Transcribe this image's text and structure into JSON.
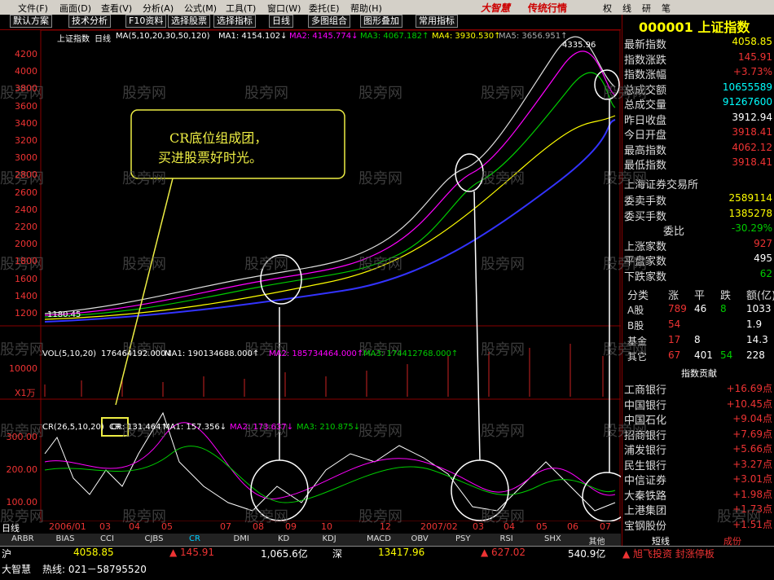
{
  "menu": {
    "logo": "大智慧",
    "logo_sub": "传统行情",
    "items": [
      "文件(F)",
      "画面(D)",
      "查看(V)",
      "分析(A)",
      "公式(M)",
      "工具(T)",
      "窗口(W)",
      "委托(E)",
      "帮助(H)"
    ],
    "tabs": [
      "权",
      "线",
      "研",
      "笔"
    ]
  },
  "toolbar": [
    "默认方案",
    "技术分析",
    "F10资料",
    "选择股票",
    "选择指标",
    "日线",
    "多图组合",
    "图形叠加",
    "常用指标"
  ],
  "watermark": "股旁网",
  "main_panel": {
    "legend": [
      "上证指数",
      "日线",
      "MA(5,10,20,30,50,120)",
      "MA1: 4154.102↓",
      "MA2: 4145.774↓",
      "MA3: 4067.182↑",
      "MA4: 3930.530↑",
      "MA5: 3656.951↑"
    ],
    "yaxis": [
      "4200",
      "4000",
      "3800",
      "3600",
      "3400",
      "3200",
      "3000",
      "2800",
      "2600",
      "2400",
      "2200",
      "2000",
      "1800",
      "1600",
      "1400",
      "1200"
    ],
    "high_label": "4335.96",
    "low_label": "1180.45",
    "callout": [
      "CR底位组成团，",
      "买进股票好时光。"
    ]
  },
  "vol_panel": {
    "legend": [
      "VOL(5,10,20)",
      "176464192.000↓",
      "MA1: 190134688.000↑",
      "MA2: 185734464.000↑",
      "MA3: 174412768.000↑"
    ],
    "yaxis": [
      "10000"
    ],
    "unit": "X1万"
  },
  "cr_panel": {
    "legend": [
      "CR(26,5,10,20)",
      "CR: 131.464↑",
      "MA1: 157.356↓",
      "MA2: 173.637↓",
      "MA3: 210.875↓"
    ],
    "yaxis": [
      "300.00",
      "200.00",
      "100.00"
    ],
    "box_label": "CR"
  },
  "date_axis": [
    "日线",
    "2006/01",
    "03",
    "04",
    "05",
    "07",
    "08",
    "09",
    "10",
    "12",
    "2007/02",
    "03",
    "04",
    "05",
    "06",
    "07"
  ],
  "indicator_tabs": [
    "ARBR",
    "BIAS",
    "CCI",
    "CJBS",
    "CR",
    "DMI",
    "KD",
    "KDJ",
    "MACD",
    "OBV",
    "PSY",
    "RSI",
    "SHX",
    "其他"
  ],
  "right_panel": {
    "title": "000001 上证指数",
    "quote": [
      [
        "最新指数",
        "4058.85"
      ],
      [
        "指数涨跌",
        "145.91"
      ],
      [
        "指数涨幅",
        "+3.73%"
      ],
      [
        "总成交额",
        "10655589"
      ],
      [
        "总成交量",
        "91267600"
      ],
      [
        "昨日收盘",
        "3912.94"
      ],
      [
        "今日开盘",
        "3918.41"
      ],
      [
        "最高指数",
        "4062.12"
      ],
      [
        "最低指数",
        "3918.41"
      ]
    ],
    "exchange": "上海证券交易所",
    "orders": [
      [
        "委卖手数",
        "2589114"
      ],
      [
        "委买手数",
        "1385278"
      ],
      [
        "委比",
        "-30.29%"
      ],
      [
        "上涨家数",
        "927"
      ],
      [
        "平盘家数",
        "495"
      ],
      [
        "下跌家数",
        "62"
      ]
    ],
    "table": {
      "header": [
        "分类",
        "涨",
        "平",
        "跌",
        "额(亿)"
      ],
      "rows": [
        [
          "A股",
          "789",
          "46",
          "8",
          "1033"
        ],
        [
          "B股",
          "54",
          null,
          null,
          "1.9"
        ],
        [
          "基金",
          "17",
          "8",
          null,
          "14.3"
        ],
        [
          "其它",
          "67",
          "401",
          "54",
          "228"
        ]
      ]
    },
    "contrib_title": "指数贡献",
    "contrib": [
      [
        "工商银行",
        "+16.69点"
      ],
      [
        "中国银行",
        "+10.45点"
      ],
      [
        "中国石化",
        "+9.04点"
      ],
      [
        "招商银行",
        "+7.69点"
      ],
      [
        "浦发银行",
        "+5.66点"
      ],
      [
        "民生银行",
        "+3.27点"
      ],
      [
        "中信证券",
        "+3.01点"
      ],
      [
        "大秦铁路",
        "+1.98点"
      ],
      [
        "上港集团",
        "+1.73点"
      ],
      [
        "宝钢股份",
        "+1.51点"
      ]
    ],
    "tabs": [
      "短线",
      "成份"
    ]
  },
  "status": {
    "sh": "沪",
    "sh_index": "4058.85",
    "sh_change": "▲ 145.91",
    "sh_amount": "1,065.6亿",
    "sz": "深",
    "sz_index": "13417.96",
    "sz_change": "▲ 627.02",
    "sz_amount": "540.9亿",
    "news": "▲ 旭飞投资 封涨停板",
    "brand": "大智慧",
    "hotline": "热线: 021－58795520"
  }
}
